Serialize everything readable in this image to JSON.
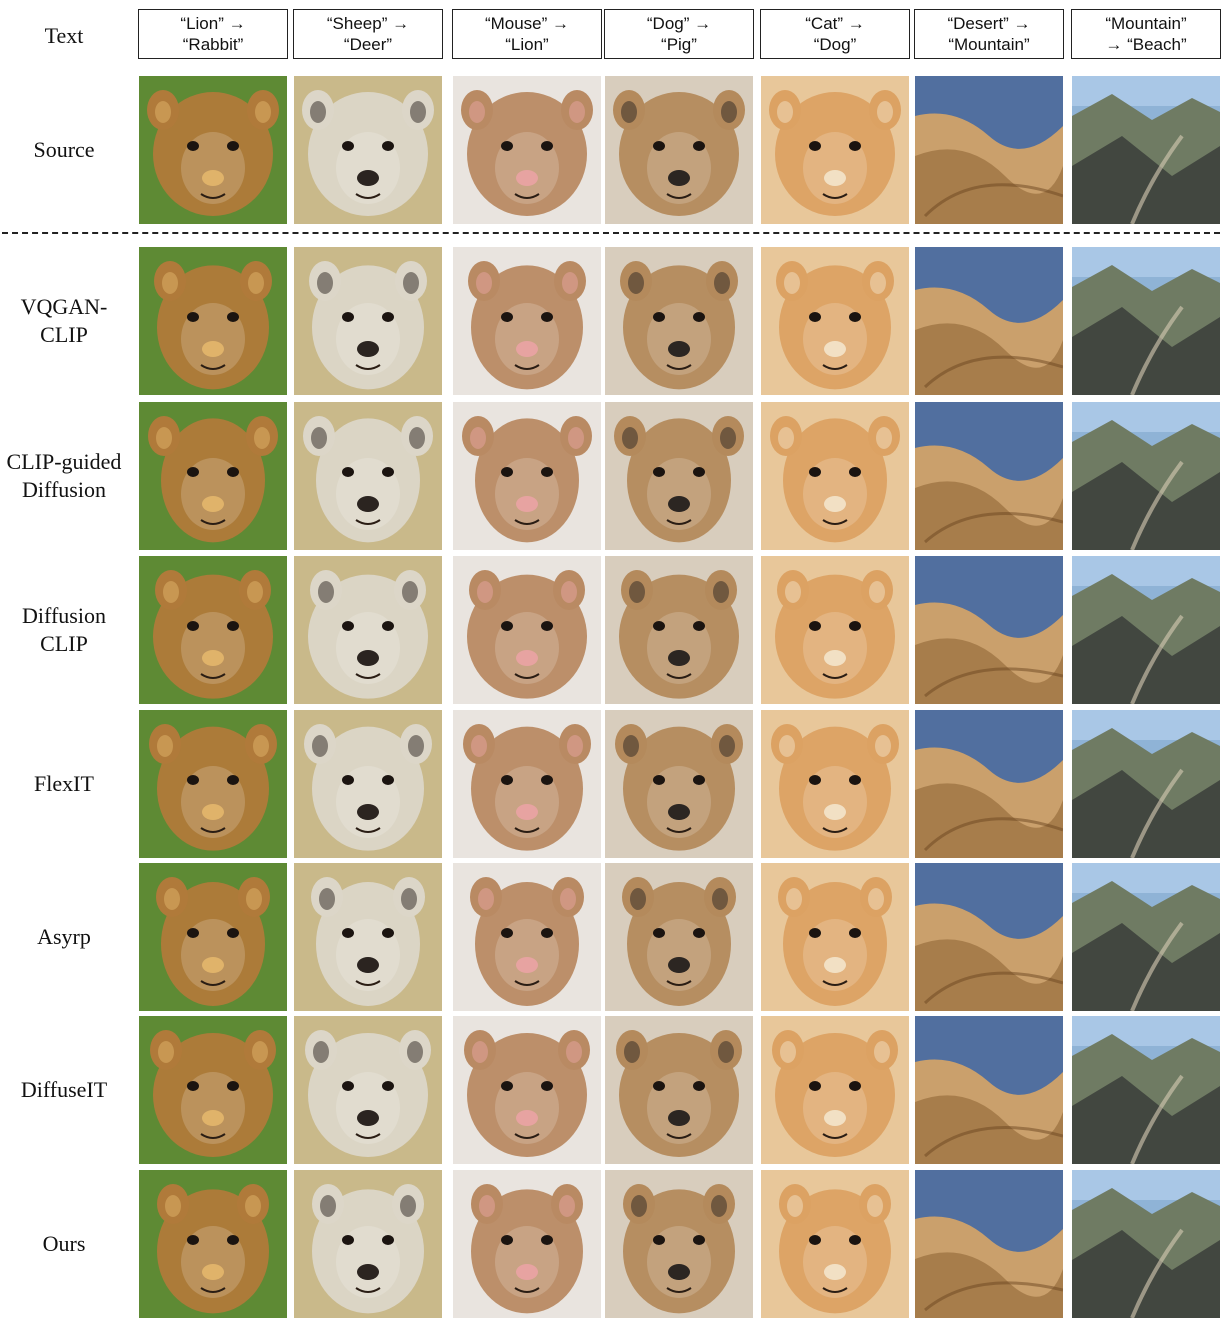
{
  "header_label": "Text",
  "prompts": [
    "“Lion” →\n“Rabbit”",
    "“Sheep” →\n“Deer”",
    "“Mouse” →\n“Lion”",
    "“Dog” →\n“Pig”",
    "“Cat” →\n“Dog”",
    "“Desert” →\n“Mountain”",
    "“Mountain”\n→ “Beach”"
  ],
  "rows": [
    {
      "label": "Source"
    },
    {
      "label": "VQGAN-\nCLIP"
    },
    {
      "label": "CLIP-guided\nDiffusion"
    },
    {
      "label": "Diffusion\nCLIP"
    },
    {
      "label": "FlexIT"
    },
    {
      "label": "Asyrp"
    },
    {
      "label": "DiffuseIT"
    },
    {
      "label": "Ours"
    }
  ],
  "cell_palettes": [
    {
      "bg": "#5e8a34",
      "fg": "#b07a3a",
      "accent": "#e0b36a"
    },
    {
      "bg": "#c9b98a",
      "fg": "#dcd6c8",
      "accent": "#2b2420"
    },
    {
      "bg": "#e9e4df",
      "fg": "#b98a63",
      "accent": "#e7a3a1"
    },
    {
      "bg": "#d8cdbd",
      "fg": "#b48a5c",
      "accent": "#2c2622"
    },
    {
      "bg": "#e8c79a",
      "fg": "#dca263",
      "accent": "#f2e0c4"
    },
    {
      "bg": "#516f9f",
      "fg": "#caa06c",
      "accent": "#8b6032"
    },
    {
      "bg": "#8fb3d6",
      "fg": "#6f7b63",
      "accent": "#2f3232"
    }
  ]
}
